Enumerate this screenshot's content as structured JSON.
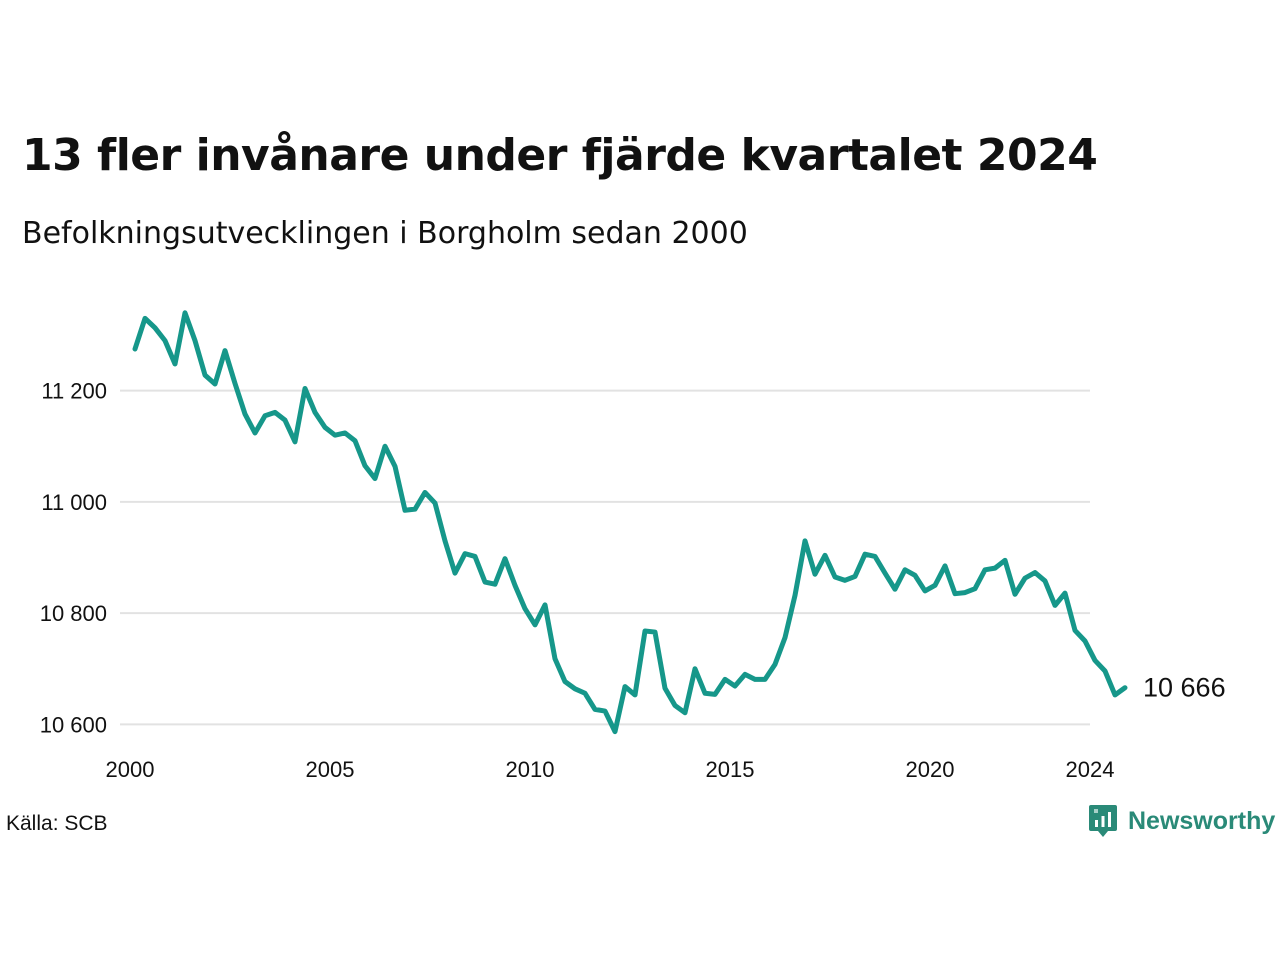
{
  "title": "13 fler invånare under fjärde kvartalet 2024",
  "subtitle": "Befolkningsutvecklingen i Borgholm sedan 2000",
  "source": "Källa: SCB",
  "brand": {
    "name": "Newsworthy",
    "icon": "newsworthy-logo-icon",
    "color": "#2a8a78"
  },
  "end_label": "10 666",
  "chart_data": {
    "type": "line",
    "line_color": "#16978a",
    "grid": true,
    "y_ticks": [
      {
        "value": 10600,
        "label": "10 600"
      },
      {
        "value": 10800,
        "label": "10 800"
      },
      {
        "value": 11000,
        "label": "11 000"
      },
      {
        "value": 11200,
        "label": "11 200"
      }
    ],
    "x_ticks": [
      {
        "value": 2000,
        "label": "2000"
      },
      {
        "value": 2005,
        "label": "2005"
      },
      {
        "value": 2010,
        "label": "2010"
      },
      {
        "value": 2015,
        "label": "2015"
      },
      {
        "value": 2020,
        "label": "2020"
      },
      {
        "value": 2024,
        "label": "2024"
      }
    ],
    "xlim": [
      2000,
      2025
    ],
    "ylim": [
      10545,
      11390
    ],
    "series": [
      {
        "start": 2000.125,
        "step": 0.25,
        "values": [
          11275,
          11330,
          11313,
          11290,
          11248,
          11340,
          11290,
          11228,
          11212,
          11272,
          11213,
          11158,
          11124,
          11155,
          11161,
          11147,
          11108,
          11204,
          11161,
          11134,
          11120,
          11124,
          11110,
          11065,
          11042,
          11100,
          11064,
          10985,
          10987,
          11017,
          10998,
          10930,
          10872,
          10907,
          10902,
          10856,
          10852,
          10898,
          10850,
          10808,
          10779,
          10815,
          10718,
          10677,
          10664,
          10656,
          10627,
          10624,
          10587,
          10668,
          10653,
          10768,
          10766,
          10665,
          10634,
          10621,
          10700,
          10656,
          10654,
          10681,
          10669,
          10690,
          10681,
          10681,
          10708,
          10756,
          10832,
          10930,
          10870,
          10904,
          10865,
          10859,
          10866,
          10906,
          10902,
          10872,
          10843,
          10878,
          10868,
          10840,
          10850,
          10885,
          10835,
          10837,
          10844,
          10878,
          10881,
          10895,
          10834,
          10863,
          10873,
          10858,
          10814,
          10836,
          10769,
          10750,
          10715,
          10696,
          10653,
          10666
        ]
      }
    ]
  }
}
